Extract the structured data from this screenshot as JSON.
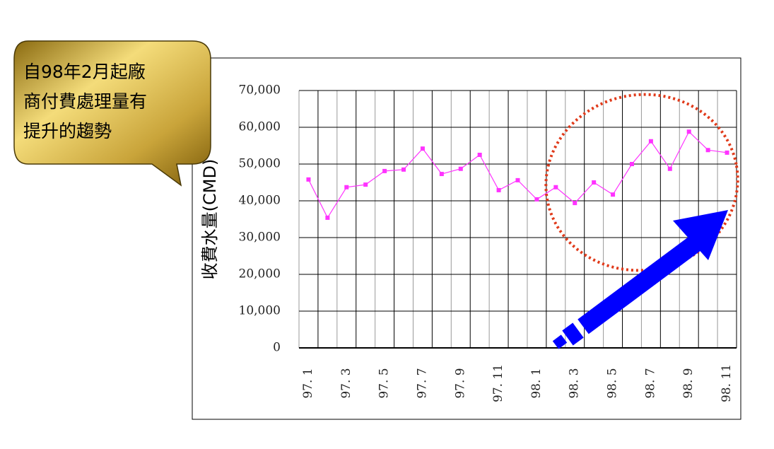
{
  "chart_data": {
    "type": "line",
    "y_label": "收費水量(CMD)",
    "categories": [
      "97. 1",
      null,
      "97. 3",
      null,
      "97. 5",
      null,
      "97. 7",
      null,
      "97. 9",
      null,
      "97. 11",
      null,
      "98. 1",
      null,
      "98. 3",
      null,
      "98. 5",
      null,
      "98. 7",
      null,
      "98. 9",
      null,
      "98. 11"
    ],
    "series": [
      {
        "color": "#ff33ff",
        "values": [
          45800,
          35400,
          43700,
          44400,
          48100,
          48500,
          54200,
          47300,
          48700,
          52500,
          42900,
          45600,
          40400,
          43700,
          39400,
          45000,
          41700,
          50000,
          56200,
          48700,
          58800,
          53800,
          53100
        ]
      }
    ],
    "ylim": [
      0,
      70000
    ],
    "yticks": [
      0,
      {
        "value": 10000,
        "label": "10,000"
      },
      {
        "value": 20000,
        "label": "20,000"
      },
      {
        "value": 30000,
        "label": "30,000"
      },
      {
        "value": 40000,
        "label": "40,000"
      },
      {
        "value": 50000,
        "label": "50,000"
      },
      {
        "value": 60000,
        "label": "60,000"
      },
      {
        "value": 70000,
        "label": "70,000"
      }
    ],
    "grid": true,
    "annotation": [
      "自98年2月起廠",
      "商付費處理量有",
      "提升的趨勢"
    ]
  }
}
